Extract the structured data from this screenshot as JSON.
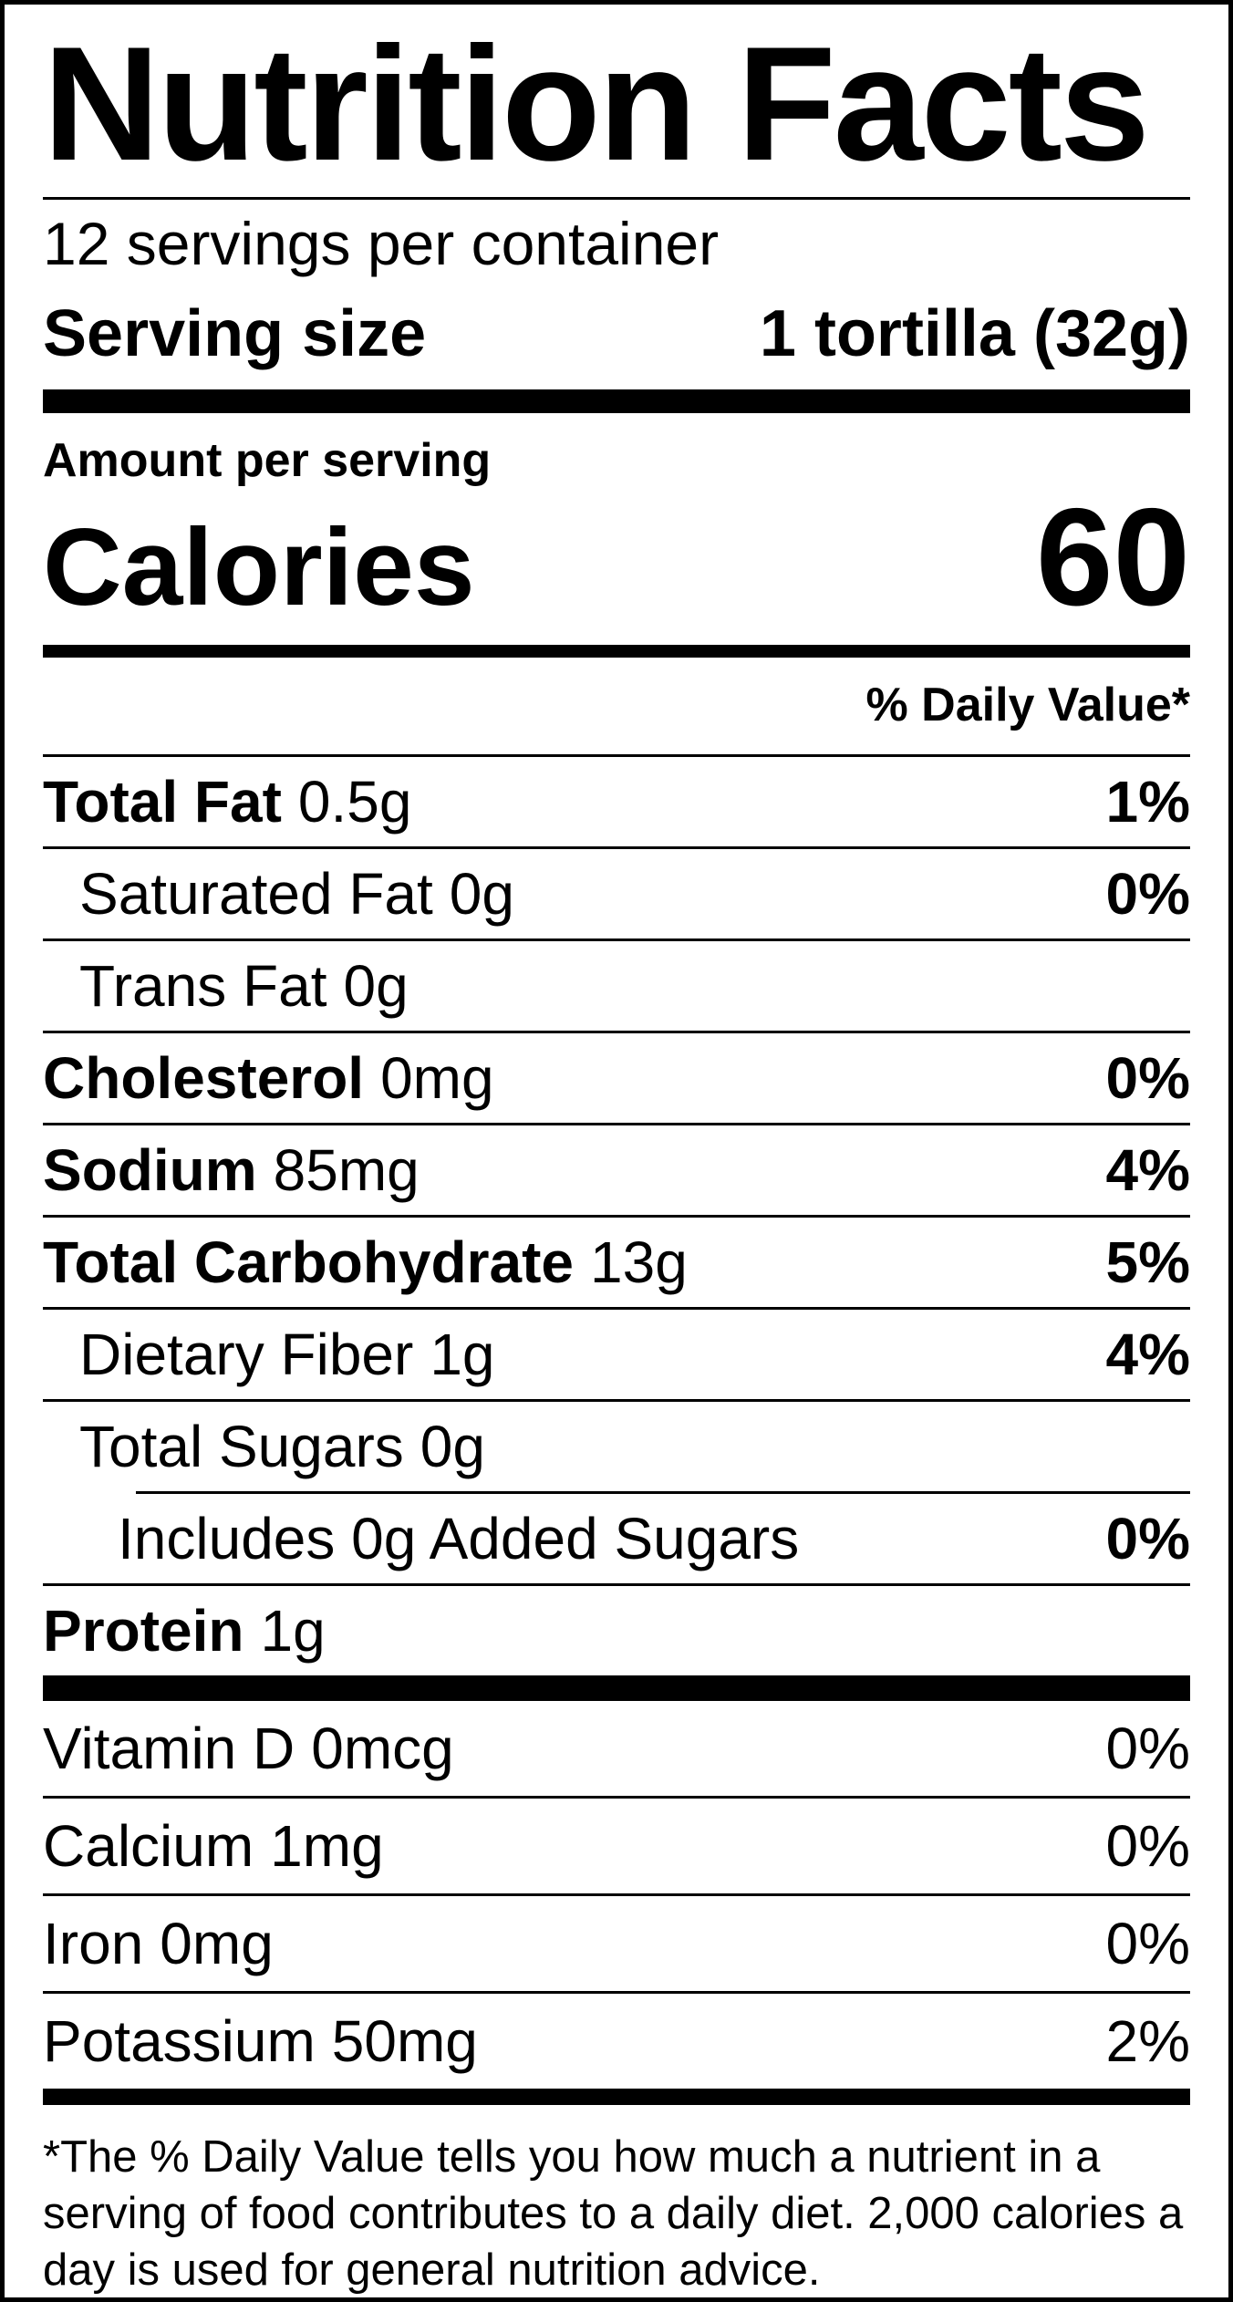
{
  "colors": {
    "ink": "#000000",
    "paper": "#ffffff"
  },
  "label": {
    "title": "Nutrition Facts",
    "servings_per_container": "12 servings per container",
    "serving_size_label": "Serving size",
    "serving_size_value": "1 tortilla (32g)",
    "amount_per_serving": "Amount per serving",
    "calories_label": "Calories",
    "calories_value": "60",
    "daily_value_header": "% Daily Value*",
    "nutrients": [
      {
        "name": "Total Fat",
        "amount": "0.5g",
        "dv": "1%"
      },
      {
        "name": "Saturated Fat",
        "amount": "0g",
        "dv": "0%"
      },
      {
        "name": "Trans Fat",
        "amount": "0g",
        "dv": ""
      },
      {
        "name": "Cholesterol",
        "amount": "0mg",
        "dv": "0%"
      },
      {
        "name": "Sodium",
        "amount": "85mg",
        "dv": "4%"
      },
      {
        "name": "Total Carbohydrate",
        "amount": "13g",
        "dv": "5%"
      },
      {
        "name": "Dietary Fiber",
        "amount": "1g",
        "dv": "4%"
      },
      {
        "name": "Total Sugars",
        "amount": "0g",
        "dv": ""
      },
      {
        "name": "Includes 0g Added Sugars",
        "amount": "",
        "dv": "0%"
      },
      {
        "name": "Protein",
        "amount": "1g",
        "dv": ""
      }
    ],
    "micronutrients": [
      {
        "name": "Vitamin D",
        "amount": "0mcg",
        "dv": "0%"
      },
      {
        "name": "Calcium",
        "amount": "1mg",
        "dv": "0%"
      },
      {
        "name": "Iron",
        "amount": "0mg",
        "dv": "0%"
      },
      {
        "name": "Potassium",
        "amount": "50mg",
        "dv": "2%"
      }
    ],
    "footnote": "*The % Daily Value tells you how much a nutrient in a serving of food contributes to a daily diet. 2,000 calories a day is used for general nutrition advice."
  }
}
